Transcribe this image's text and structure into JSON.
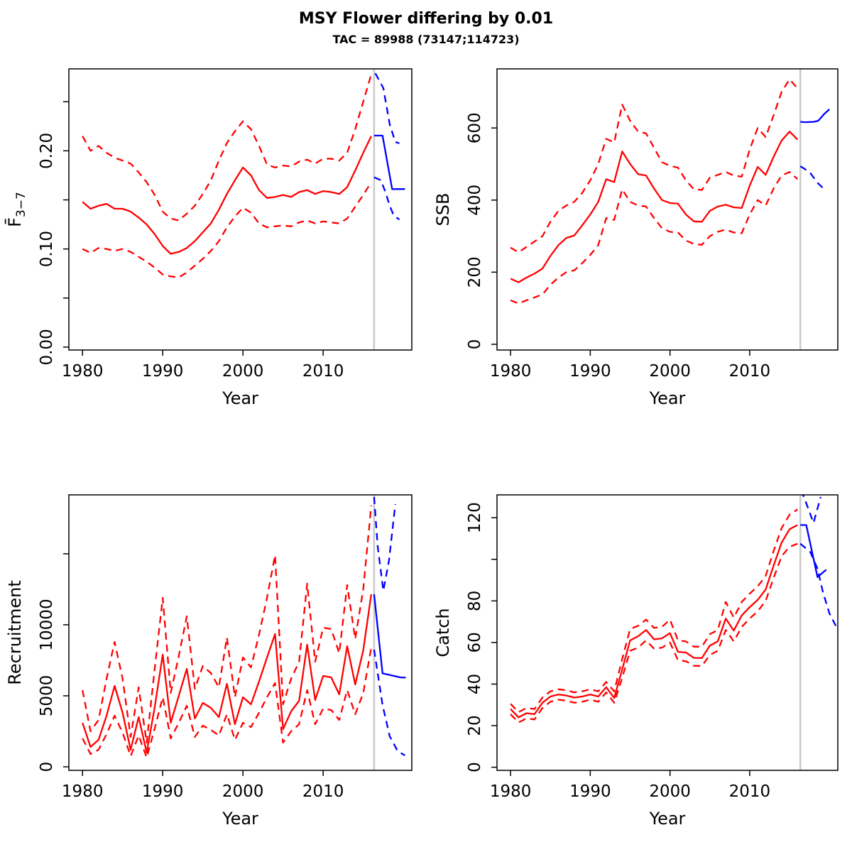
{
  "header": {
    "title": "MSY Flower differing by 0.01",
    "subtitle": "TAC = 89988 (73147;114723)"
  },
  "colors": {
    "historical": "#ff0000",
    "projection": "#0000ff",
    "divider": "#c9c9c9",
    "axis": "#000000",
    "background": "#ffffff"
  },
  "axes": {
    "xlabel": "Year",
    "xticks": [
      1980,
      1990,
      2000,
      2010
    ],
    "xlim": [
      1978.3,
      2021.05
    ],
    "divider_year": 2016.35,
    "historical_years_start": 1980
  },
  "chart_data": [
    {
      "id": "fbar",
      "type": "line",
      "ylabel": {
        "base": "F̄",
        "sub": "3−7"
      },
      "ylim": [
        -0.003,
        0.2835
      ],
      "grid": false,
      "yticks": [
        {
          "v": 0,
          "label": "0.00"
        },
        {
          "v": 0.05
        },
        {
          "v": 0.1,
          "label": "0.10"
        },
        {
          "v": 0.15
        },
        {
          "v": 0.2,
          "label": "0.20"
        },
        {
          "v": 0.25
        }
      ],
      "series": [
        {
          "name": "upper-ci",
          "color": "historical",
          "style": "dashed",
          "x0": 1980,
          "y": [
            0.215,
            0.2,
            0.205,
            0.198,
            0.193,
            0.19,
            0.187,
            0.178,
            0.168,
            0.155,
            0.138,
            0.131,
            0.129,
            0.136,
            0.144,
            0.156,
            0.17,
            0.19,
            0.208,
            0.22,
            0.23,
            0.222,
            0.205,
            0.186,
            0.183,
            0.185,
            0.184,
            0.189,
            0.191,
            0.187,
            0.192,
            0.192,
            0.19,
            0.198,
            0.222,
            0.25,
            0.278
          ]
        },
        {
          "name": "lower-ci",
          "color": "historical",
          "style": "dashed",
          "x0": 1980,
          "y": [
            0.1,
            0.096,
            0.101,
            0.1,
            0.098,
            0.1,
            0.097,
            0.092,
            0.087,
            0.081,
            0.074,
            0.072,
            0.071,
            0.076,
            0.083,
            0.09,
            0.098,
            0.108,
            0.122,
            0.133,
            0.142,
            0.137,
            0.126,
            0.122,
            0.123,
            0.124,
            0.123,
            0.127,
            0.129,
            0.126,
            0.128,
            0.127,
            0.126,
            0.131,
            0.143,
            0.155,
            0.168
          ]
        },
        {
          "name": "median",
          "color": "historical",
          "style": "solid",
          "x0": 1980,
          "y": [
            0.148,
            0.141,
            0.144,
            0.146,
            0.141,
            0.141,
            0.138,
            0.132,
            0.125,
            0.115,
            0.103,
            0.095,
            0.097,
            0.101,
            0.108,
            0.117,
            0.126,
            0.14,
            0.156,
            0.17,
            0.183,
            0.175,
            0.16,
            0.152,
            0.153,
            0.155,
            0.153,
            0.158,
            0.16,
            0.156,
            0.159,
            0.158,
            0.156,
            0.163,
            0.18,
            0.198,
            0.215
          ]
        },
        {
          "name": "projection-upper-ci",
          "color": "projection",
          "style": "dashed",
          "x": [
            2016.5,
            2017.5,
            2018.3,
            2019.0,
            2019.5
          ],
          "y": [
            0.279,
            0.264,
            0.227,
            0.209,
            0.2077
          ]
        },
        {
          "name": "projection-lower-ci",
          "color": "projection",
          "style": "dashed",
          "x": [
            2016.35,
            2017.2,
            2017.8,
            2018.3,
            2018.8,
            2019.5
          ],
          "y": [
            0.173,
            0.17,
            0.157,
            0.144,
            0.134,
            0.13
          ]
        },
        {
          "name": "projection-median",
          "color": "projection",
          "style": "solid",
          "x": [
            2016.35,
            2017.4,
            2018.6,
            2020.2
          ],
          "y": [
            0.2155,
            0.2155,
            0.161,
            0.161
          ]
        }
      ]
    },
    {
      "id": "ssb",
      "type": "line",
      "ylabel": "SSB",
      "ylim": [
        -16,
        764
      ],
      "grid": false,
      "yticks": [
        {
          "v": 0,
          "label": "0"
        },
        {
          "v": 200,
          "label": "200"
        },
        {
          "v": 400,
          "label": "400"
        },
        {
          "v": 600,
          "label": "600"
        }
      ],
      "series": [
        {
          "name": "upper-ci",
          "color": "historical",
          "style": "dashed",
          "x0": 1980,
          "y": [
            268,
            255,
            270,
            285,
            300,
            340,
            370,
            385,
            395,
            420,
            455,
            500,
            570,
            560,
            665,
            620,
            590,
            585,
            545,
            505,
            495,
            490,
            455,
            430,
            428,
            462,
            470,
            478,
            468,
            465,
            540,
            600,
            575,
            635,
            700,
            735,
            710
          ]
        },
        {
          "name": "lower-ci",
          "color": "historical",
          "style": "dashed",
          "x0": 1980,
          "y": [
            122,
            113,
            122,
            130,
            138,
            165,
            185,
            200,
            205,
            225,
            248,
            275,
            350,
            345,
            430,
            395,
            385,
            382,
            350,
            322,
            312,
            310,
            288,
            278,
            276,
            300,
            312,
            318,
            310,
            308,
            360,
            400,
            385,
            432,
            468,
            478,
            458
          ]
        },
        {
          "name": "median",
          "color": "historical",
          "style": "solid",
          "x0": 1980,
          "y": [
            182,
            172,
            185,
            196,
            210,
            245,
            275,
            295,
            302,
            330,
            360,
            395,
            458,
            450,
            535,
            500,
            472,
            468,
            432,
            400,
            392,
            390,
            360,
            341,
            340,
            370,
            382,
            387,
            380,
            378,
            440,
            492,
            470,
            520,
            565,
            590,
            568
          ]
        },
        {
          "name": "projection-upper-ci",
          "color": "projection",
          "style": "dashed",
          "x": [
            2016.35,
            2017.2,
            2018.2
          ],
          "y": [
            766,
            772,
            780
          ]
        },
        {
          "name": "projection-lower-ci",
          "color": "projection",
          "style": "dashed",
          "x": [
            2016.35,
            2017.5,
            2018.5,
            2019.5
          ],
          "y": [
            494,
            478,
            448,
            427
          ]
        },
        {
          "name": "projection-median",
          "color": "projection",
          "style": "solid",
          "x": [
            2016.35,
            2017.0,
            2018.0,
            2018.6,
            2019.3,
            2020.0
          ],
          "y": [
            617,
            616,
            617,
            620,
            638,
            652
          ]
        }
      ]
    },
    {
      "id": "recruitment",
      "type": "line",
      "ylabel": "Recruitment",
      "ylim": [
        -250,
        19150
      ],
      "grid": false,
      "yticks": [
        {
          "v": 0,
          "label": "0"
        },
        {
          "v": 5000,
          "label": "5000"
        },
        {
          "v": 10000,
          "label": "10000"
        },
        {
          "v": 15000
        }
      ],
      "series": [
        {
          "name": "upper-ci",
          "color": "historical",
          "style": "dashed",
          "x0": 1980,
          "y": [
            5400,
            2500,
            3300,
            6200,
            8800,
            6200,
            2100,
            5600,
            1700,
            6900,
            11900,
            5200,
            7800,
            10600,
            5500,
            7100,
            6600,
            5600,
            9100,
            4900,
            7700,
            7000,
            9300,
            11900,
            14900,
            4400,
            6200,
            7400,
            12900,
            7400,
            9800,
            9700,
            8000,
            12800,
            9000,
            12500,
            18400
          ]
        },
        {
          "name": "lower-ci",
          "color": "historical",
          "style": "dashed",
          "x0": 1980,
          "y": [
            2000,
            900,
            1200,
            2300,
            3600,
            2400,
            750,
            2200,
            650,
            2700,
            4900,
            2000,
            3100,
            4300,
            2100,
            2900,
            2600,
            2200,
            3700,
            1900,
            3100,
            2800,
            3800,
            4900,
            5900,
            1700,
            2500,
            3000,
            5400,
            3000,
            4100,
            4000,
            3300,
            5400,
            3700,
            5200,
            8400
          ]
        },
        {
          "name": "median",
          "color": "historical",
          "style": "solid",
          "x0": 1980,
          "y": [
            3100,
            1400,
            1900,
            3600,
            5700,
            3800,
            1200,
            3500,
            1000,
            4200,
            7900,
            3100,
            5000,
            6900,
            3400,
            4500,
            4150,
            3500,
            5850,
            3000,
            4900,
            4400,
            6000,
            7700,
            9350,
            2650,
            3900,
            4650,
            8600,
            4700,
            6400,
            6300,
            5100,
            8500,
            5800,
            8200,
            12150
          ]
        },
        {
          "name": "projection-upper-ci",
          "color": "projection",
          "style": "dashed",
          "x": [
            2016.35,
            2016.8,
            2017.5,
            2018.2,
            2019.0
          ],
          "y": [
            19000,
            15500,
            12400,
            14500,
            18500
          ]
        },
        {
          "name": "projection-lower-ci",
          "color": "projection",
          "style": "dashed",
          "x": [
            2016.35,
            2017.4,
            2018.3,
            2019.3,
            2020.2
          ],
          "y": [
            8250,
            4350,
            2150,
            1100,
            800
          ]
        },
        {
          "name": "projection-median",
          "color": "projection",
          "style": "solid",
          "x": [
            2016.35,
            2017.4,
            2019.6,
            2020.3
          ],
          "y": [
            12150,
            6580,
            6300,
            6280
          ]
        }
      ]
    },
    {
      "id": "catch",
      "type": "line",
      "ylabel": "Catch",
      "ylim": [
        -1.5,
        131
      ],
      "grid": false,
      "yticks": [
        {
          "v": 0,
          "label": "0"
        },
        {
          "v": 20,
          "label": "20"
        },
        {
          "v": 40,
          "label": "40"
        },
        {
          "v": 60,
          "label": "60"
        },
        {
          "v": 80,
          "label": "80"
        },
        {
          "v": 100
        },
        {
          "v": 120,
          "label": "120"
        }
      ],
      "series": [
        {
          "name": "upper-ci",
          "color": "historical",
          "style": "dashed",
          "x0": 1980,
          "y": [
            30.5,
            26.5,
            28.5,
            28,
            33.5,
            36.5,
            37.5,
            37,
            36,
            36.5,
            37.5,
            36.5,
            41,
            36.5,
            52,
            66.5,
            68,
            71,
            67,
            67.5,
            71,
            61,
            60.5,
            58,
            58,
            64,
            66,
            79.5,
            72,
            79.5,
            83.5,
            87,
            92,
            104,
            115,
            121.5,
            124
          ]
        },
        {
          "name": "lower-ci",
          "color": "historical",
          "style": "dashed",
          "x0": 1980,
          "y": [
            25.5,
            21.5,
            23.5,
            23,
            28.5,
            31.5,
            32.5,
            32,
            31,
            31.5,
            32.5,
            31.5,
            36,
            31,
            43,
            56,
            57.5,
            61,
            57,
            57.5,
            60,
            51.5,
            51,
            48.8,
            48.7,
            54,
            56,
            66,
            60.5,
            67.5,
            71.5,
            75,
            80,
            91,
            101.5,
            106,
            107.5
          ]
        },
        {
          "name": "median",
          "color": "historical",
          "style": "solid",
          "x0": 1980,
          "y": [
            28,
            24,
            26,
            25.5,
            31,
            34,
            35,
            34.5,
            33.5,
            34,
            35,
            34,
            38.5,
            33.3,
            47,
            61,
            63,
            66,
            61.5,
            62,
            64.5,
            55.5,
            55.2,
            52.6,
            52.5,
            58.5,
            60.5,
            71.5,
            65.7,
            73,
            77,
            80.5,
            85.5,
            97,
            108,
            114.5,
            116.5
          ]
        },
        {
          "name": "projection-upper-ci",
          "color": "projection",
          "style": "dashed",
          "x": [
            2016.35,
            2016.8,
            2018.0,
            2018.9
          ],
          "y": [
            133,
            130,
            117.5,
            130
          ]
        },
        {
          "name": "projection-lower-ci",
          "color": "projection",
          "style": "dashed",
          "x": [
            2016.35,
            2017.6,
            2018.5,
            2019.2,
            2020.0,
            2020.8
          ],
          "y": [
            107.5,
            103.5,
            95.5,
            84,
            74,
            68
          ]
        },
        {
          "name": "projection-median",
          "color": "projection",
          "style": "solid",
          "x": [
            2016.35,
            2017.1,
            2018.5,
            2019.6
          ],
          "y": [
            116.5,
            116.5,
            91.5,
            95
          ]
        }
      ]
    }
  ]
}
